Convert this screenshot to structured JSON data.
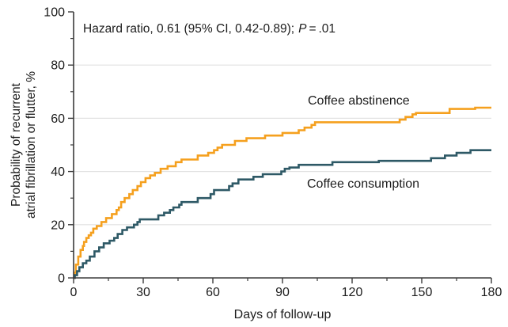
{
  "figure": {
    "annotation": {
      "full_text": "Hazard ratio, 0.61 (95% CI, 0.42-0.89); P = .01",
      "prefix": "Hazard ratio, 0.61 (95% CI, 0.42-0.89);",
      "p_symbol": "P",
      "equals": "=",
      "p_value": ".01"
    },
    "y_axis": {
      "title_line1": "Probability of recurrent",
      "title_line2": "atrial fibrillation or flutter, %",
      "major_ticks": [
        0,
        20,
        40,
        60,
        80,
        100
      ],
      "minor_ticks": [
        10,
        30,
        50,
        70,
        90
      ],
      "range": [
        0,
        100
      ]
    },
    "x_axis": {
      "title": "Days of follow-up",
      "major_ticks": [
        0,
        30,
        60,
        90,
        120,
        150,
        180
      ],
      "minor_ticks": [
        15,
        45,
        75,
        105,
        135,
        165
      ],
      "range": [
        0,
        180
      ]
    },
    "colors": {
      "abstinence": "#F5A01E",
      "consumption": "#2E5966",
      "gridline": "#E2E2E2",
      "axis": "#3B3B3B",
      "text": "#1C1C1C",
      "background": "#FFFFFF"
    }
  },
  "chart_data": {
    "type": "line",
    "subtype": "kaplan-meier-step",
    "title": "",
    "xlabel": "Days of follow-up",
    "ylabel": "Probability of recurrent atrial fibrillation or flutter, %",
    "xlim": [
      0,
      180
    ],
    "ylim": [
      0,
      100
    ],
    "grid": "horizontal gridlines at y = 20, 40, 60, 80",
    "gridlines_y": [
      20,
      40,
      60,
      80
    ],
    "legend_position": "labels next to curves",
    "annotation": "Hazard ratio, 0.61 (95% CI, 0.42-0.89); P = .01",
    "series": [
      {
        "name": "Coffee abstinence",
        "color": "#F5A01E",
        "points": [
          [
            0,
            0
          ],
          [
            0.5,
            2
          ],
          [
            1,
            5
          ],
          [
            2,
            8
          ],
          [
            3,
            10.5
          ],
          [
            4,
            12
          ],
          [
            4.5,
            13.5
          ],
          [
            5.5,
            15
          ],
          [
            6.5,
            16
          ],
          [
            7.5,
            17
          ],
          [
            8.5,
            18.5
          ],
          [
            10,
            19.5
          ],
          [
            12,
            21
          ],
          [
            14,
            22.5
          ],
          [
            16.5,
            24
          ],
          [
            18.5,
            25.5
          ],
          [
            19.5,
            26.5
          ],
          [
            20.5,
            28.5
          ],
          [
            22,
            30
          ],
          [
            24,
            31.5
          ],
          [
            25.5,
            33
          ],
          [
            27.5,
            34.5
          ],
          [
            29,
            36
          ],
          [
            31,
            37.5
          ],
          [
            33,
            38.5
          ],
          [
            35,
            39.5
          ],
          [
            37.5,
            41
          ],
          [
            40.5,
            42
          ],
          [
            44,
            43.5
          ],
          [
            46.5,
            44.5
          ],
          [
            53.5,
            46
          ],
          [
            58,
            47
          ],
          [
            60.5,
            48
          ],
          [
            62,
            49
          ],
          [
            64,
            50
          ],
          [
            69.5,
            51.5
          ],
          [
            74.5,
            52.5
          ],
          [
            82.5,
            53.5
          ],
          [
            90,
            54.5
          ],
          [
            97,
            55.5
          ],
          [
            99.5,
            56.5
          ],
          [
            102.5,
            57.5
          ],
          [
            104,
            58.5
          ],
          [
            140.5,
            59.5
          ],
          [
            143,
            60.5
          ],
          [
            146,
            61.5
          ],
          [
            147.5,
            62
          ],
          [
            162,
            63.5
          ],
          [
            173,
            64
          ],
          [
            180,
            64
          ]
        ]
      },
      {
        "name": "Coffee consumption",
        "color": "#2E5966",
        "points": [
          [
            0,
            0
          ],
          [
            0.5,
            1
          ],
          [
            1.5,
            2.5
          ],
          [
            2.5,
            4
          ],
          [
            4,
            5.5
          ],
          [
            5.5,
            6.5
          ],
          [
            7,
            8
          ],
          [
            9,
            10
          ],
          [
            11,
            11.5
          ],
          [
            13,
            13
          ],
          [
            15.5,
            14
          ],
          [
            17.5,
            15
          ],
          [
            19,
            16.5
          ],
          [
            21,
            18
          ],
          [
            23,
            19
          ],
          [
            26,
            20
          ],
          [
            27.5,
            21
          ],
          [
            28.5,
            22
          ],
          [
            36.5,
            23.5
          ],
          [
            39,
            24.5
          ],
          [
            41.5,
            25.5
          ],
          [
            43,
            26.5
          ],
          [
            45.5,
            27.5
          ],
          [
            46.5,
            28.5
          ],
          [
            53.5,
            30
          ],
          [
            59,
            31.5
          ],
          [
            60.5,
            33
          ],
          [
            67,
            34.5
          ],
          [
            68.5,
            35.5
          ],
          [
            71,
            37
          ],
          [
            77.5,
            38
          ],
          [
            81.5,
            39
          ],
          [
            89.5,
            40
          ],
          [
            91,
            41
          ],
          [
            93,
            41.5
          ],
          [
            97,
            42.5
          ],
          [
            111.5,
            43.5
          ],
          [
            131.5,
            44
          ],
          [
            154,
            45
          ],
          [
            160,
            46
          ],
          [
            165,
            47
          ],
          [
            171,
            48
          ],
          [
            180,
            48
          ]
        ]
      }
    ]
  }
}
